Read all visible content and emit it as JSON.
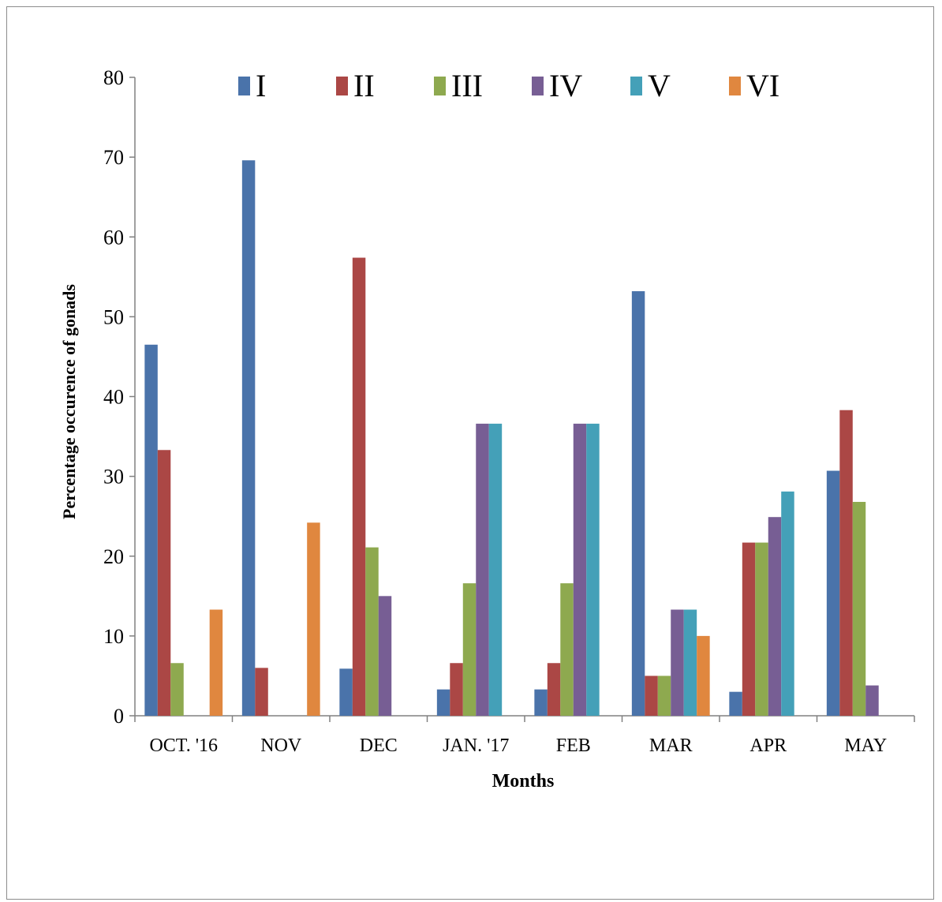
{
  "chart_data": {
    "type": "bar",
    "xlabel": "Months",
    "ylabel": "Percentage occurence of gonads",
    "ylim": [
      0,
      80
    ],
    "yticks": [
      "0",
      "10",
      "20",
      "30",
      "40",
      "50",
      "60",
      "70",
      "80"
    ],
    "categories": [
      "OCT. '16",
      "NOV",
      "DEC",
      "JAN. '17",
      "FEB",
      "MAR",
      "APR",
      "MAY"
    ],
    "legend_position": "top",
    "grid": false,
    "series": [
      {
        "name": "I",
        "color": "#4a73aa",
        "values": [
          46.5,
          69.6,
          5.9,
          3.3,
          3.3,
          53.2,
          3.0,
          30.7
        ]
      },
      {
        "name": "II",
        "color": "#ab4745",
        "values": [
          33.3,
          6.0,
          57.4,
          6.6,
          6.6,
          5.0,
          21.7,
          38.3
        ]
      },
      {
        "name": "III",
        "color": "#8ea94f",
        "values": [
          6.6,
          0,
          21.1,
          16.6,
          16.6,
          5.0,
          21.7,
          26.8
        ]
      },
      {
        "name": "IV",
        "color": "#775e94",
        "values": [
          0,
          0,
          15.0,
          36.6,
          36.6,
          13.3,
          24.9,
          3.8
        ]
      },
      {
        "name": "V",
        "color": "#44a0b8",
        "values": [
          0,
          0,
          0,
          36.6,
          36.6,
          13.3,
          28.1,
          0
        ]
      },
      {
        "name": "VI",
        "color": "#e0873f",
        "values": [
          13.3,
          24.2,
          0,
          0,
          0,
          10.0,
          0,
          0
        ]
      }
    ]
  }
}
